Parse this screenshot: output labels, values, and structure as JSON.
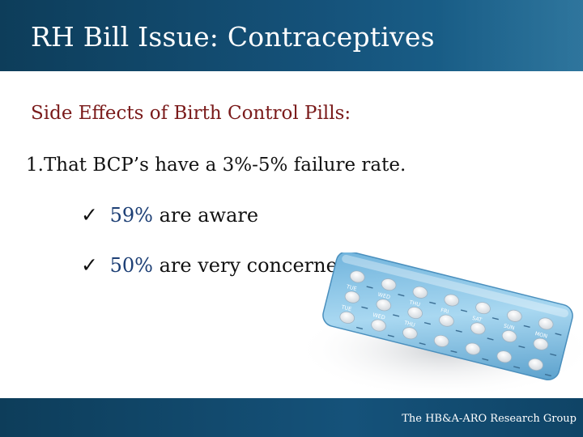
{
  "title": "RH Bill Issue: Contraceptives",
  "subtitle": "Side Effects of Birth Control Pills:",
  "point": "1.That BCP’s have a 3%-5% failure rate.",
  "bullets": [
    {
      "check": "✓",
      "percent": "59%",
      "text": "are aware"
    },
    {
      "check": "✓",
      "percent": "50%",
      "text": "are very concerned"
    }
  ],
  "image": {
    "day_labels": [
      "TUE",
      "WED",
      "THU",
      "FRI",
      "SAT",
      "SUN",
      "MON",
      "TUE",
      "WED",
      "THU"
    ]
  },
  "footer": "The HB&A-ARO Research Group",
  "colors": {
    "title_bar": "#15527a",
    "subtitle": "#7a1a1a",
    "percent": "#1d3f75",
    "pack": "#8cc6e8"
  }
}
